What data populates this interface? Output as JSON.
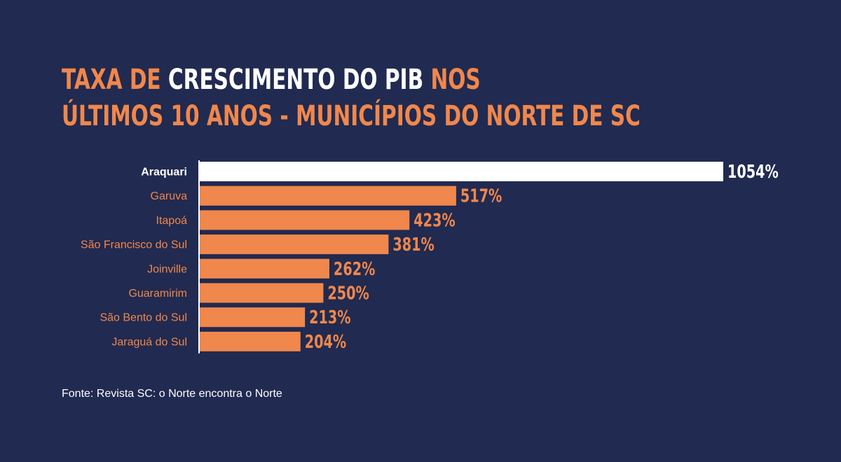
{
  "title": {
    "line1": [
      {
        "text": "TAXA DE ",
        "color": "#f0874c"
      },
      {
        "text": "CRESCIMENTO DO PIB",
        "color": "#ffffff"
      },
      {
        "text": " NOS",
        "color": "#f0874c"
      }
    ],
    "line2": [
      {
        "text": "ÚLTIMOS 10 ANOS - MUNICÍPIOS DO NORTE DE SC",
        "color": "#f0874c"
      }
    ]
  },
  "chart_data": {
    "type": "bar",
    "orientation": "horizontal",
    "categories": [
      "Araquari",
      "Garuva",
      "Itapoá",
      "São Francisco do Sul",
      "Joinville",
      "Guaramirim",
      "São Bento do Sul",
      "Jaraguá do Sul"
    ],
    "values": [
      1054,
      517,
      423,
      381,
      262,
      250,
      213,
      204
    ],
    "value_labels": [
      "1054%",
      "517%",
      "423%",
      "381%",
      "262%",
      "250%",
      "213%",
      "204%"
    ],
    "unit": "%",
    "highlight_index": 0,
    "colors": {
      "bar": "#f0874c",
      "highlight_bar": "#ffffff",
      "label": "#f0874c",
      "highlight_label": "#ffffff",
      "axis": "#ffffff"
    },
    "xlim": [
      0,
      1054
    ],
    "grid": false,
    "legend": "none"
  },
  "source": "Fonte: Revista SC: o Norte encontra o Norte"
}
